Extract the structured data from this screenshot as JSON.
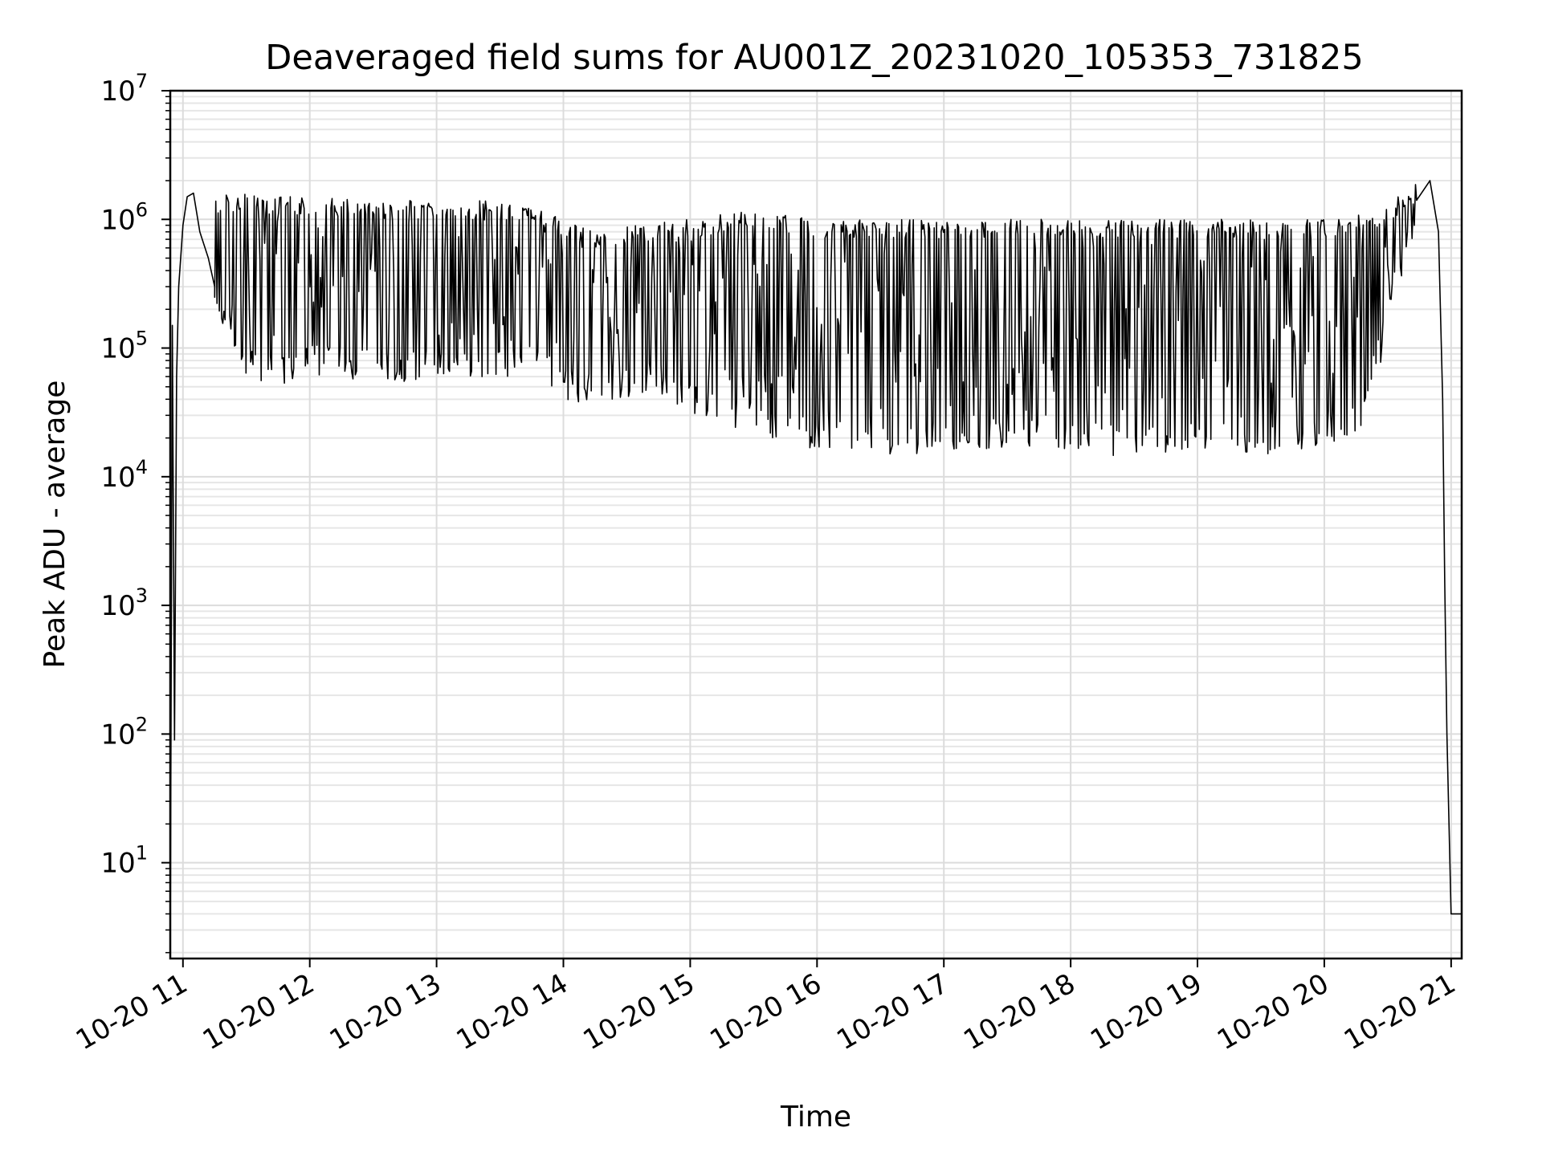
{
  "chart_data": {
    "type": "line",
    "title": "Deaveraged field sums for AU001Z_20231020_105353_731825",
    "xlabel": "Time",
    "ylabel": "Peak ADU - average",
    "yscale": "log",
    "grid": "on",
    "line_color": "#000000",
    "x_ticks": [
      "10-20 11",
      "10-20 12",
      "10-20 13",
      "10-20 14",
      "10-20 15",
      "10-20 16",
      "10-20 17",
      "10-20 18",
      "10-20 19",
      "10-20 20",
      "10-20 21"
    ],
    "y_ticks": [
      {
        "base": "10",
        "exp": "1"
      },
      {
        "base": "10",
        "exp": "2"
      },
      {
        "base": "10",
        "exp": "3"
      },
      {
        "base": "10",
        "exp": "4"
      },
      {
        "base": "10",
        "exp": "5"
      },
      {
        "base": "10",
        "exp": "6"
      },
      {
        "base": "10",
        "exp": "7"
      }
    ],
    "xlim": [
      "2023-10-20 10:54",
      "2023-10-20 21:05"
    ],
    "ylim": [
      1.8,
      10000000
    ],
    "series": [
      {
        "x": [
          "2023-10-20 10:54",
          "2023-10-20 10:55",
          "2023-10-20 10:56",
          "2023-10-20 10:57",
          "2023-10-20 10:58",
          "2023-10-20 11:00",
          "2023-10-20 11:02",
          "2023-10-20 11:05",
          "2023-10-20 11:08",
          "2023-10-20 11:12",
          "2023-10-20 11:15",
          "2023-10-20 11:20",
          "2023-10-20 11:25",
          "2023-10-20 11:30",
          "2023-10-20 11:35",
          "2023-10-20 11:40",
          "2023-10-20 11:50",
          "2023-10-20 12:00",
          "2023-10-20 12:15",
          "2023-10-20 12:30",
          "2023-10-20 12:45",
          "2023-10-20 13:00",
          "2023-10-20 13:15",
          "2023-10-20 13:30",
          "2023-10-20 13:45",
          "2023-10-20 14:00",
          "2023-10-20 14:15",
          "2023-10-20 14:30",
          "2023-10-20 14:45",
          "2023-10-20 15:00",
          "2023-10-20 15:15",
          "2023-10-20 15:30",
          "2023-10-20 15:45",
          "2023-10-20 16:00",
          "2023-10-20 16:20",
          "2023-10-20 16:40",
          "2023-10-20 17:00",
          "2023-10-20 17:20",
          "2023-10-20 17:40",
          "2023-10-20 18:00",
          "2023-10-20 18:20",
          "2023-10-20 18:40",
          "2023-10-20 19:00",
          "2023-10-20 19:20",
          "2023-10-20 19:40",
          "2023-10-20 20:00",
          "2023-10-20 20:15",
          "2023-10-20 20:30",
          "2023-10-20 20:40",
          "2023-10-20 20:45",
          "2023-10-20 20:50",
          "2023-10-20 20:54",
          "2023-10-20 20:56",
          "2023-10-20 20:57",
          "2023-10-20 20:58",
          "2023-10-20 21:00",
          "2023-10-20 21:05"
        ],
        "y": [
          2,
          150000,
          90,
          60000,
          300000,
          900000,
          1500000,
          1600000,
          800000,
          500000,
          300000,
          200000,
          120000,
          90000,
          80000,
          85000,
          90000,
          100000,
          110000,
          95000,
          90000,
          85000,
          80000,
          75000,
          60000,
          55000,
          50000,
          45000,
          40000,
          35000,
          30000,
          27000,
          25000,
          23000,
          22000,
          21000,
          21000,
          21000,
          20000,
          20000,
          19000,
          19000,
          18000,
          18000,
          18000,
          20000,
          30000,
          80000,
          300000,
          1500000,
          2000000,
          800000,
          40000,
          1500,
          100,
          4,
          4
        ]
      }
    ],
    "envelope": {
      "x": [
        "2023-10-20 11:15",
        "2023-10-20 11:30",
        "2023-10-20 11:45",
        "2023-10-20 12:00",
        "2023-10-20 12:30",
        "2023-10-20 13:00",
        "2023-10-20 13:30",
        "2023-10-20 13:50",
        "2023-10-20 14:00",
        "2023-10-20 14:20",
        "2023-10-20 14:45",
        "2023-10-20 15:00",
        "2023-10-20 15:30",
        "2023-10-20 16:00",
        "2023-10-20 16:30",
        "2023-10-20 17:00",
        "2023-10-20 17:30",
        "2023-10-20 18:00",
        "2023-10-20 18:30",
        "2023-10-20 19:00",
        "2023-10-20 19:30",
        "2023-10-20 20:00",
        "2023-10-20 20:20",
        "2023-10-20 20:35",
        "2023-10-20 20:45"
      ],
      "high": [
        1500000,
        1700000,
        1500000,
        1500000,
        1400000,
        1400000,
        1400000,
        1200000,
        1000000,
        800000,
        1000000,
        1000000,
        1200000,
        1000000,
        1000000,
        1000000,
        1000000,
        1000000,
        1000000,
        1000000,
        1000000,
        1000000,
        1100000,
        1500000,
        2000000
      ],
      "low": [
        180000,
        60000,
        50000,
        60000,
        55000,
        55000,
        60000,
        60000,
        40000,
        35000,
        45000,
        30000,
        22000,
        16000,
        15000,
        15000,
        17000,
        16000,
        14000,
        15000,
        15000,
        16000,
        25000,
        300000,
        800000
      ]
    }
  }
}
